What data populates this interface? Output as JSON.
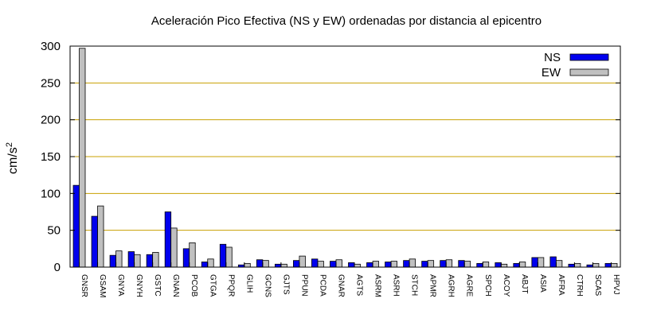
{
  "chart_data": {
    "type": "bar",
    "title": "Aceleración Pico Efectiva (NS y EW) ordenadas por distancia al epicentro",
    "ylabel": "cm/s",
    "ylabel_sup": "2",
    "xlabel": "",
    "ylim": [
      0,
      300
    ],
    "yticks": [
      0,
      50,
      100,
      150,
      200,
      250,
      300
    ],
    "grid": "horizontal",
    "legend_position": "top-right",
    "categories": [
      "GNSR",
      "GSAM",
      "GNYA",
      "GNYH",
      "GSTC",
      "GNAN",
      "PCOB",
      "GTGA",
      "PPQR",
      "GLIH",
      "GCNS",
      "GJTS",
      "PPUN",
      "PCDA",
      "GNAR",
      "AGTS",
      "ASRM",
      "ASRH",
      "STCH",
      "APMR",
      "AGRH",
      "AGRE",
      "SPCH",
      "ACOY",
      "ABJT",
      "ASIA",
      "AFRA",
      "CTRH",
      "SCAS",
      "HPVJ"
    ],
    "series": [
      {
        "name": "NS",
        "color": "#0000ee",
        "values": [
          111,
          69,
          16,
          21,
          17,
          75,
          25,
          7,
          31,
          3,
          10,
          4,
          9,
          11,
          8,
          6,
          6,
          7,
          9,
          8,
          9,
          9,
          5,
          6,
          5,
          13,
          14,
          4,
          3,
          5
        ]
      },
      {
        "name": "EW",
        "color": "#c0c0c0",
        "values": [
          297,
          83,
          22,
          17,
          20,
          53,
          33,
          11,
          27,
          5,
          9,
          4,
          15,
          8,
          10,
          4,
          8,
          8,
          11,
          9,
          10,
          8,
          7,
          4,
          7,
          13,
          9,
          5,
          5,
          5
        ]
      }
    ]
  }
}
